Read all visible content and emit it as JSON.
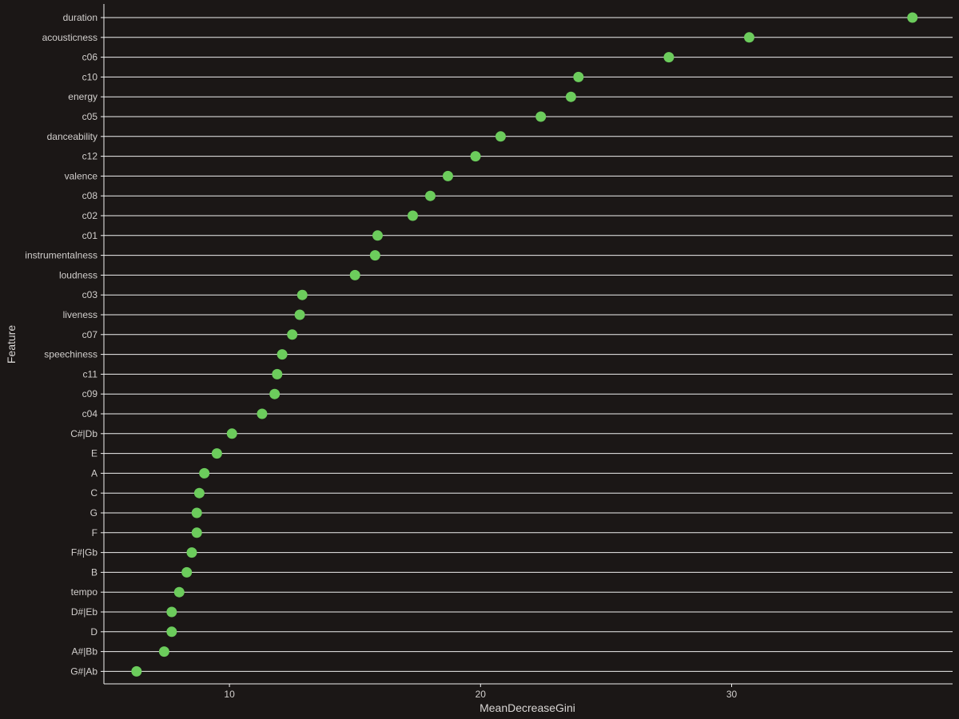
{
  "chart_data": {
    "type": "dot",
    "xlabel": "MeanDecreaseGini",
    "ylabel": "Feature",
    "xlim": [
      5.0,
      38.8
    ],
    "xticks": [
      10,
      20,
      30
    ],
    "grid": "horizontal",
    "colors": {
      "background": "#1b1716",
      "point": "#6ccc5c",
      "gridline": "#f0f0f0",
      "axis": "#f0f0f0",
      "text": "#d2cfcd"
    },
    "categories": [
      "duration",
      "acousticness",
      "c06",
      "c10",
      "energy",
      "c05",
      "danceability",
      "c12",
      "valence",
      "c08",
      "c02",
      "c01",
      "instrumentalness",
      "loudness",
      "c03",
      "liveness",
      "c07",
      "speechiness",
      "c11",
      "c09",
      "c04",
      "C#|Db",
      "E",
      "A",
      "C",
      "G",
      "F",
      "F#|Gb",
      "B",
      "tempo",
      "D#|Eb",
      "D",
      "A#|Bb",
      "G#|Ab"
    ],
    "values": [
      37.2,
      30.7,
      27.5,
      23.9,
      23.6,
      22.4,
      20.8,
      19.8,
      18.7,
      18.0,
      17.3,
      15.9,
      15.8,
      15.0,
      12.9,
      12.8,
      12.5,
      12.1,
      11.9,
      11.8,
      11.3,
      10.1,
      9.5,
      9.0,
      8.8,
      8.7,
      8.7,
      8.5,
      8.3,
      8.0,
      7.7,
      7.7,
      7.4,
      6.3
    ]
  }
}
